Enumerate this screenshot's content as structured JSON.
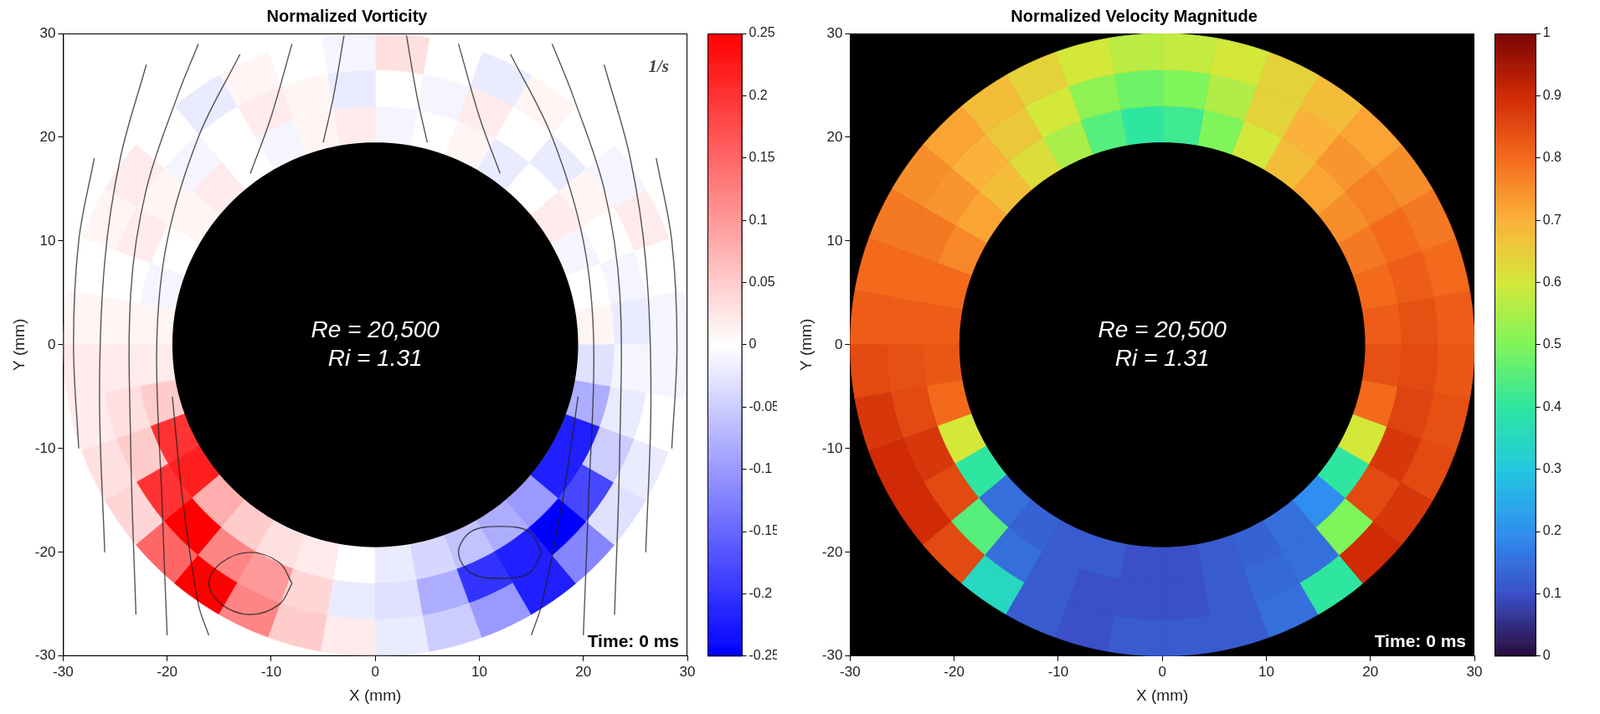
{
  "chart_data": [
    {
      "type": "heatmap",
      "title": "Normalized Vorticity",
      "x_label": "X (mm)",
      "y_label": "Y (mm)",
      "xlim": [
        -30,
        30
      ],
      "ylim": [
        -30,
        30
      ],
      "xticks": [
        -30,
        -20,
        -10,
        0,
        10,
        20,
        30
      ],
      "yticks": [
        -30,
        -20,
        -10,
        0,
        10,
        20,
        30
      ],
      "field": {
        "r_edges": [
          19.5,
          23,
          26.5,
          30
        ],
        "theta_edges": [
          0,
          10,
          20,
          30,
          40,
          50,
          60,
          70,
          80,
          90,
          100,
          110,
          120,
          130,
          140,
          150,
          160,
          170,
          180,
          190,
          200,
          210,
          220,
          230,
          240,
          250,
          260,
          270,
          280,
          290,
          300,
          310,
          320,
          330,
          340,
          350,
          360
        ],
        "cells": [
          [
            0.01,
            0,
            -0.01,
            0.02,
            0,
            -0.02,
            0.01,
            0,
            -0.01,
            0.02,
            0.01,
            -0.01,
            0,
            0.02,
            0.01,
            0,
            -0.01,
            0.01,
            0.02,
            0.05,
            0.2,
            0.22,
            0.08,
            0.05,
            0.03,
            0.02,
            0,
            -0.02,
            -0.04,
            -0.06,
            -0.08,
            -0.1,
            -0.22,
            -0.22,
            -0.08,
            -0.03
          ],
          [
            -0.02,
            -0.01,
            0,
            0.01,
            -0.02,
            0,
            0.02,
            -0.01,
            0,
            -0.02,
            0.01,
            0.02,
            0,
            -0.01,
            0.01,
            0.02,
            0,
            0.01,
            0.02,
            0.03,
            0.05,
            0.2,
            0.25,
            0.12,
            0.1,
            0.04,
            -0.02,
            -0.03,
            -0.08,
            -0.2,
            -0.22,
            -0.25,
            -0.18,
            -0.05,
            -0.02,
            -0.01
          ],
          [
            -0.01,
            0,
            0.02,
            -0.01,
            0,
            0.01,
            -0.02,
            0,
            0.03,
            -0.01,
            0,
            0.01,
            -0.02,
            0,
            0.02,
            0.01,
            0,
            0.01,
            0.02,
            0.02,
            0.03,
            0.04,
            0.15,
            0.25,
            0.12,
            0.05,
            0.02,
            -0.02,
            -0.05,
            -0.1,
            -0.22,
            -0.12,
            -0.03,
            -0.02,
            0,
            -0.01
          ]
        ]
      },
      "colorbar": {
        "lim": [
          -0.25,
          0.25
        ],
        "ticks": [
          -0.25,
          -0.2,
          -0.15,
          -0.1,
          -0.05,
          0,
          0.05,
          0.1,
          0.15,
          0.2,
          0.25
        ]
      },
      "streamlines": [
        [
          [
            -20,
            -28
          ],
          [
            -20.5,
            -15
          ],
          [
            -21,
            0
          ],
          [
            -20,
            10
          ],
          [
            -17,
            20
          ],
          [
            -13,
            28
          ]
        ],
        [
          [
            -23,
            -26
          ],
          [
            -23.5,
            -10
          ],
          [
            -23.5,
            5
          ],
          [
            -22,
            15
          ],
          [
            -19,
            24
          ],
          [
            -17,
            29
          ]
        ],
        [
          [
            -26,
            -20
          ],
          [
            -26.5,
            -5
          ],
          [
            -26,
            8
          ],
          [
            -24.5,
            18
          ],
          [
            -22,
            27
          ]
        ],
        [
          [
            -28.5,
            -10
          ],
          [
            -29,
            0
          ],
          [
            -28.5,
            10
          ],
          [
            -27,
            18
          ]
        ],
        [
          [
            20,
            -28
          ],
          [
            20.5,
            -15
          ],
          [
            21,
            0
          ],
          [
            20,
            10
          ],
          [
            17,
            20
          ],
          [
            13,
            28
          ]
        ],
        [
          [
            23,
            -26
          ],
          [
            23.5,
            -10
          ],
          [
            23.5,
            5
          ],
          [
            22,
            15
          ],
          [
            19,
            24
          ],
          [
            17,
            29
          ]
        ],
        [
          [
            26,
            -20
          ],
          [
            26.5,
            -5
          ],
          [
            26,
            8
          ],
          [
            24.5,
            18
          ],
          [
            22,
            27
          ]
        ],
        [
          [
            28.5,
            -10
          ],
          [
            29,
            0
          ],
          [
            28.5,
            10
          ],
          [
            27,
            18
          ]
        ],
        [
          [
            -12,
            16.5
          ],
          [
            -10,
            22
          ],
          [
            -8,
            29
          ]
        ],
        [
          [
            -5,
            19.5
          ],
          [
            -4,
            24
          ],
          [
            -3,
            29.8
          ]
        ],
        [
          [
            12,
            16.5
          ],
          [
            10,
            22
          ],
          [
            8,
            29
          ]
        ],
        [
          [
            5,
            19.5
          ],
          [
            4,
            24
          ],
          [
            3,
            29.8
          ]
        ],
        [
          [
            -19.5,
            -5
          ],
          [
            -18.5,
            -15
          ],
          [
            -17,
            -25
          ],
          [
            -16,
            -28
          ]
        ],
        [
          [
            19.5,
            -5
          ],
          [
            18,
            -15
          ],
          [
            16,
            -25
          ],
          [
            15,
            -28
          ]
        ],
        [
          [
            -8,
            -23
          ],
          [
            -9.2,
            -21
          ],
          [
            -12,
            -20
          ],
          [
            -14.8,
            -21
          ],
          [
            -16,
            -23
          ],
          [
            -14.8,
            -25
          ],
          [
            -12,
            -26
          ],
          [
            -9.2,
            -25
          ],
          [
            -8,
            -23
          ]
        ],
        [
          [
            16,
            -20
          ],
          [
            14.8,
            -18
          ],
          [
            12,
            -17.5
          ],
          [
            9.2,
            -18
          ],
          [
            8,
            -20
          ],
          [
            9.2,
            -22
          ],
          [
            12,
            -22.5
          ],
          [
            14.8,
            -22
          ],
          [
            16,
            -20
          ]
        ]
      ],
      "annotations": {
        "center": [
          "Re = 20,500",
          "Ri = 1.31"
        ],
        "bottom_right": "Time: 0 ms",
        "top_right": "1/s"
      }
    },
    {
      "type": "heatmap",
      "title": "Normalized Velocity Magnitude",
      "x_label": "X (mm)",
      "y_label": "Y (mm)",
      "xlim": [
        -30,
        30
      ],
      "ylim": [
        -30,
        30
      ],
      "xticks": [
        -30,
        -20,
        -10,
        0,
        10,
        20,
        30
      ],
      "yticks": [
        -30,
        -20,
        -10,
        0,
        10,
        20,
        30
      ],
      "field": {
        "r_edges": [
          19.5,
          23,
          26.5,
          30
        ],
        "theta_edges": [
          0,
          10,
          20,
          30,
          40,
          50,
          60,
          70,
          80,
          90,
          100,
          110,
          120,
          130,
          140,
          150,
          160,
          170,
          180,
          190,
          200,
          210,
          220,
          230,
          240,
          250,
          260,
          270,
          280,
          290,
          300,
          310,
          320,
          330,
          340,
          350,
          360
        ],
        "cells": [
          [
            0.82,
            0.8,
            0.78,
            0.75,
            0.72,
            0.68,
            0.6,
            0.5,
            0.42,
            0.4,
            0.45,
            0.55,
            0.62,
            0.68,
            0.72,
            0.76,
            0.8,
            0.82,
            0.83,
            0.8,
            0.6,
            0.4,
            0.15,
            0.13,
            0.12,
            0.12,
            0.1,
            0.1,
            0.12,
            0.13,
            0.15,
            0.2,
            0.4,
            0.6,
            0.8,
            0.84
          ],
          [
            0.84,
            0.82,
            0.8,
            0.77,
            0.74,
            0.7,
            0.64,
            0.56,
            0.5,
            0.48,
            0.52,
            0.6,
            0.66,
            0.7,
            0.74,
            0.78,
            0.8,
            0.82,
            0.84,
            0.85,
            0.88,
            0.85,
            0.45,
            0.15,
            0.12,
            0.1,
            0.1,
            0.1,
            0.12,
            0.14,
            0.15,
            0.5,
            0.85,
            0.88,
            0.86,
            0.85
          ],
          [
            0.82,
            0.8,
            0.78,
            0.75,
            0.72,
            0.68,
            0.64,
            0.6,
            0.58,
            0.57,
            0.6,
            0.64,
            0.68,
            0.72,
            0.75,
            0.78,
            0.8,
            0.82,
            0.85,
            0.88,
            0.9,
            0.9,
            0.85,
            0.35,
            0.12,
            0.1,
            0.12,
            0.12,
            0.12,
            0.15,
            0.4,
            0.9,
            0.88,
            0.85,
            0.84,
            0.83
          ]
        ]
      },
      "colorbar": {
        "lim": [
          0,
          1
        ],
        "ticks": [
          0,
          0.1,
          0.2,
          0.3,
          0.4,
          0.5,
          0.6,
          0.7,
          0.8,
          0.9,
          1
        ]
      },
      "annotations": {
        "center": [
          "Re = 20,500",
          "Ri = 1.31"
        ],
        "bottom_right": "Time: 0 ms"
      }
    }
  ]
}
